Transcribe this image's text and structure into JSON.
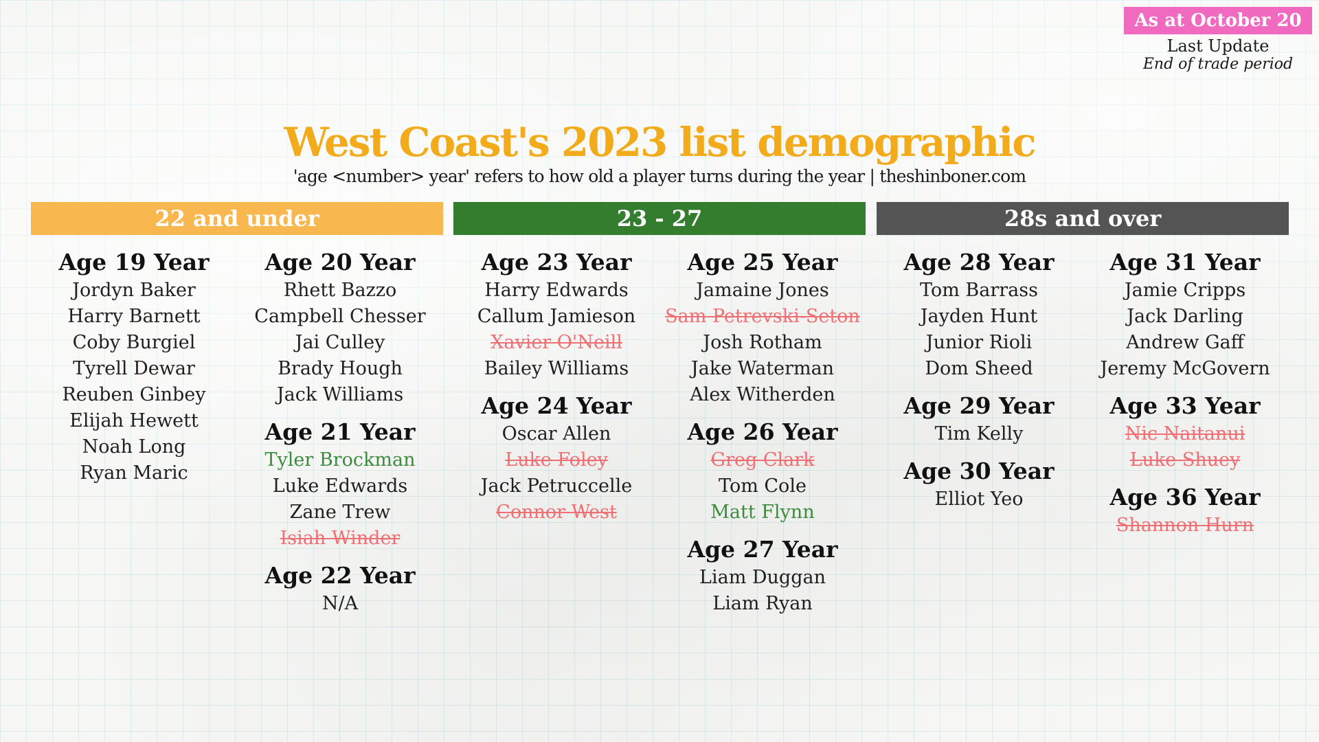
{
  "badge": "As at October 20",
  "last_update_label": "Last Update",
  "last_update_note": "End of trade period",
  "title": "West Coast's 2023 list demographic",
  "subtitle": "'age <number> year' refers to how old a player turns during the year | theshinboner.com",
  "colors": {
    "title": "#f2ab1b",
    "badge": "#f06ac0",
    "group_under": "#f9b74f",
    "group_middle": "#347d2e",
    "group_over": "#545454",
    "departed": "#ee6f74",
    "new_player": "#3c8a3c"
  },
  "groups": [
    {
      "label": "22 and under",
      "color": "#f9b74f"
    },
    {
      "label": "23 - 27",
      "color": "#347d2e"
    },
    {
      "label": "28s and over",
      "color": "#545454"
    }
  ],
  "columns": [
    {
      "sections": [
        {
          "heading": "Age 19 Year",
          "players": [
            {
              "name": "Jordyn Baker",
              "status": "current"
            },
            {
              "name": "Harry Barnett",
              "status": "current"
            },
            {
              "name": "Coby Burgiel",
              "status": "current"
            },
            {
              "name": "Tyrell Dewar",
              "status": "current"
            },
            {
              "name": "Reuben Ginbey",
              "status": "current"
            },
            {
              "name": "Elijah Hewett",
              "status": "current"
            },
            {
              "name": "Noah Long",
              "status": "current"
            },
            {
              "name": "Ryan Maric",
              "status": "current"
            }
          ]
        }
      ]
    },
    {
      "sections": [
        {
          "heading": "Age 20 Year",
          "players": [
            {
              "name": "Rhett Bazzo",
              "status": "current"
            },
            {
              "name": "Campbell Chesser",
              "status": "current"
            },
            {
              "name": "Jai Culley",
              "status": "current"
            },
            {
              "name": "Brady Hough",
              "status": "current"
            },
            {
              "name": "Jack Williams",
              "status": "current"
            }
          ]
        },
        {
          "heading": "Age 21 Year",
          "players": [
            {
              "name": "Tyler Brockman",
              "status": "new"
            },
            {
              "name": "Luke Edwards",
              "status": "current"
            },
            {
              "name": "Zane Trew",
              "status": "current"
            },
            {
              "name": "Isiah Winder",
              "status": "departed"
            }
          ]
        },
        {
          "heading": "Age 22 Year",
          "players": [
            {
              "name": "N/A",
              "status": "current"
            }
          ]
        }
      ]
    },
    {
      "sections": [
        {
          "heading": "Age 23 Year",
          "players": [
            {
              "name": "Harry Edwards",
              "status": "current"
            },
            {
              "name": "Callum Jamieson",
              "status": "current"
            },
            {
              "name": "Xavier O'Neill",
              "status": "departed"
            },
            {
              "name": "Bailey Williams",
              "status": "current"
            }
          ]
        },
        {
          "heading": "Age 24 Year",
          "players": [
            {
              "name": "Oscar Allen",
              "status": "current"
            },
            {
              "name": "Luke Foley",
              "status": "departed"
            },
            {
              "name": "Jack Petruccelle",
              "status": "current"
            },
            {
              "name": "Connor West",
              "status": "departed"
            }
          ]
        }
      ]
    },
    {
      "sections": [
        {
          "heading": "Age 25 Year",
          "players": [
            {
              "name": "Jamaine Jones",
              "status": "current"
            },
            {
              "name": "Sam Petrevski-Seton",
              "status": "departed"
            },
            {
              "name": "Josh Rotham",
              "status": "current"
            },
            {
              "name": "Jake Waterman",
              "status": "current"
            },
            {
              "name": "Alex Witherden",
              "status": "current"
            }
          ]
        },
        {
          "heading": "Age 26 Year",
          "players": [
            {
              "name": "Greg Clark",
              "status": "departed"
            },
            {
              "name": "Tom Cole",
              "status": "current"
            },
            {
              "name": "Matt Flynn",
              "status": "new"
            }
          ]
        },
        {
          "heading": "Age 27 Year",
          "players": [
            {
              "name": "Liam Duggan",
              "status": "current"
            },
            {
              "name": "Liam Ryan",
              "status": "current"
            }
          ]
        }
      ]
    },
    {
      "sections": [
        {
          "heading": "Age 28 Year",
          "players": [
            {
              "name": "Tom Barrass",
              "status": "current"
            },
            {
              "name": "Jayden Hunt",
              "status": "current"
            },
            {
              "name": "Junior Rioli",
              "status": "current"
            },
            {
              "name": "Dom Sheed",
              "status": "current"
            }
          ]
        },
        {
          "heading": "Age 29 Year",
          "players": [
            {
              "name": "Tim Kelly",
              "status": "current"
            }
          ]
        },
        {
          "heading": "Age 30 Year",
          "players": [
            {
              "name": "Elliot Yeo",
              "status": "current"
            }
          ]
        }
      ]
    },
    {
      "sections": [
        {
          "heading": "Age 31 Year",
          "players": [
            {
              "name": "Jamie Cripps",
              "status": "current"
            },
            {
              "name": "Jack Darling",
              "status": "current"
            },
            {
              "name": "Andrew Gaff",
              "status": "current"
            },
            {
              "name": "Jeremy McGovern",
              "status": "current"
            }
          ]
        },
        {
          "heading": "Age 33 Year",
          "players": [
            {
              "name": "Nic Naitanui",
              "status": "departed"
            },
            {
              "name": "Luke Shuey",
              "status": "departed"
            }
          ]
        },
        {
          "heading": "Age 36 Year",
          "players": [
            {
              "name": "Shannon Hurn",
              "status": "departed"
            }
          ]
        }
      ]
    }
  ]
}
